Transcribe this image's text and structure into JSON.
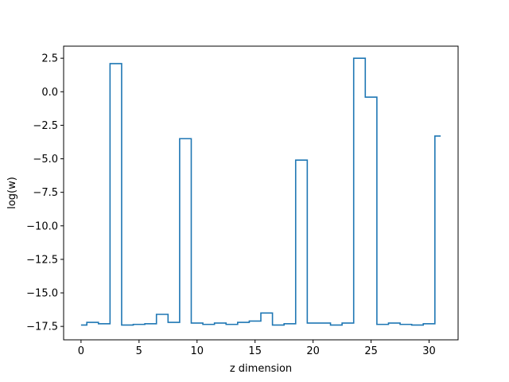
{
  "chart_data": {
    "type": "line",
    "drawstyle": "steps-mid",
    "title": "",
    "xlabel": "z dimension",
    "ylabel": "log(w)",
    "xlim": [
      -1.5,
      32.5
    ],
    "ylim": [
      -18.5,
      3.4
    ],
    "grid": false,
    "x_ticks": [
      0,
      5,
      10,
      15,
      20,
      25,
      30
    ],
    "x_tick_labels": [
      "0",
      "5",
      "10",
      "15",
      "20",
      "25",
      "30"
    ],
    "y_ticks": [
      2.5,
      0.0,
      -2.5,
      -5.0,
      -7.5,
      -10.0,
      -12.5,
      -15.0,
      -17.5
    ],
    "y_tick_labels": [
      "2.5",
      "0.0",
      "−2.5",
      "−5.0",
      "−7.5",
      "−10.0",
      "−12.5",
      "−15.0",
      "−17.5"
    ],
    "color": "#1f77b4",
    "x": [
      0,
      1,
      2,
      3,
      4,
      5,
      6,
      7,
      8,
      9,
      10,
      11,
      12,
      13,
      14,
      15,
      16,
      17,
      18,
      19,
      20,
      21,
      22,
      23,
      24,
      25,
      26,
      27,
      28,
      29,
      30,
      31
    ],
    "values": [
      -17.4,
      -17.2,
      -17.3,
      2.1,
      -17.4,
      -17.35,
      -17.3,
      -16.6,
      -17.2,
      -3.5,
      -17.25,
      -17.35,
      -17.25,
      -17.35,
      -17.2,
      -17.1,
      -16.5,
      -17.4,
      -17.3,
      -5.1,
      -17.25,
      -17.25,
      -17.4,
      -17.25,
      2.5,
      -0.4,
      -17.35,
      -17.25,
      -17.35,
      -17.4,
      -17.3,
      -3.3
    ]
  }
}
